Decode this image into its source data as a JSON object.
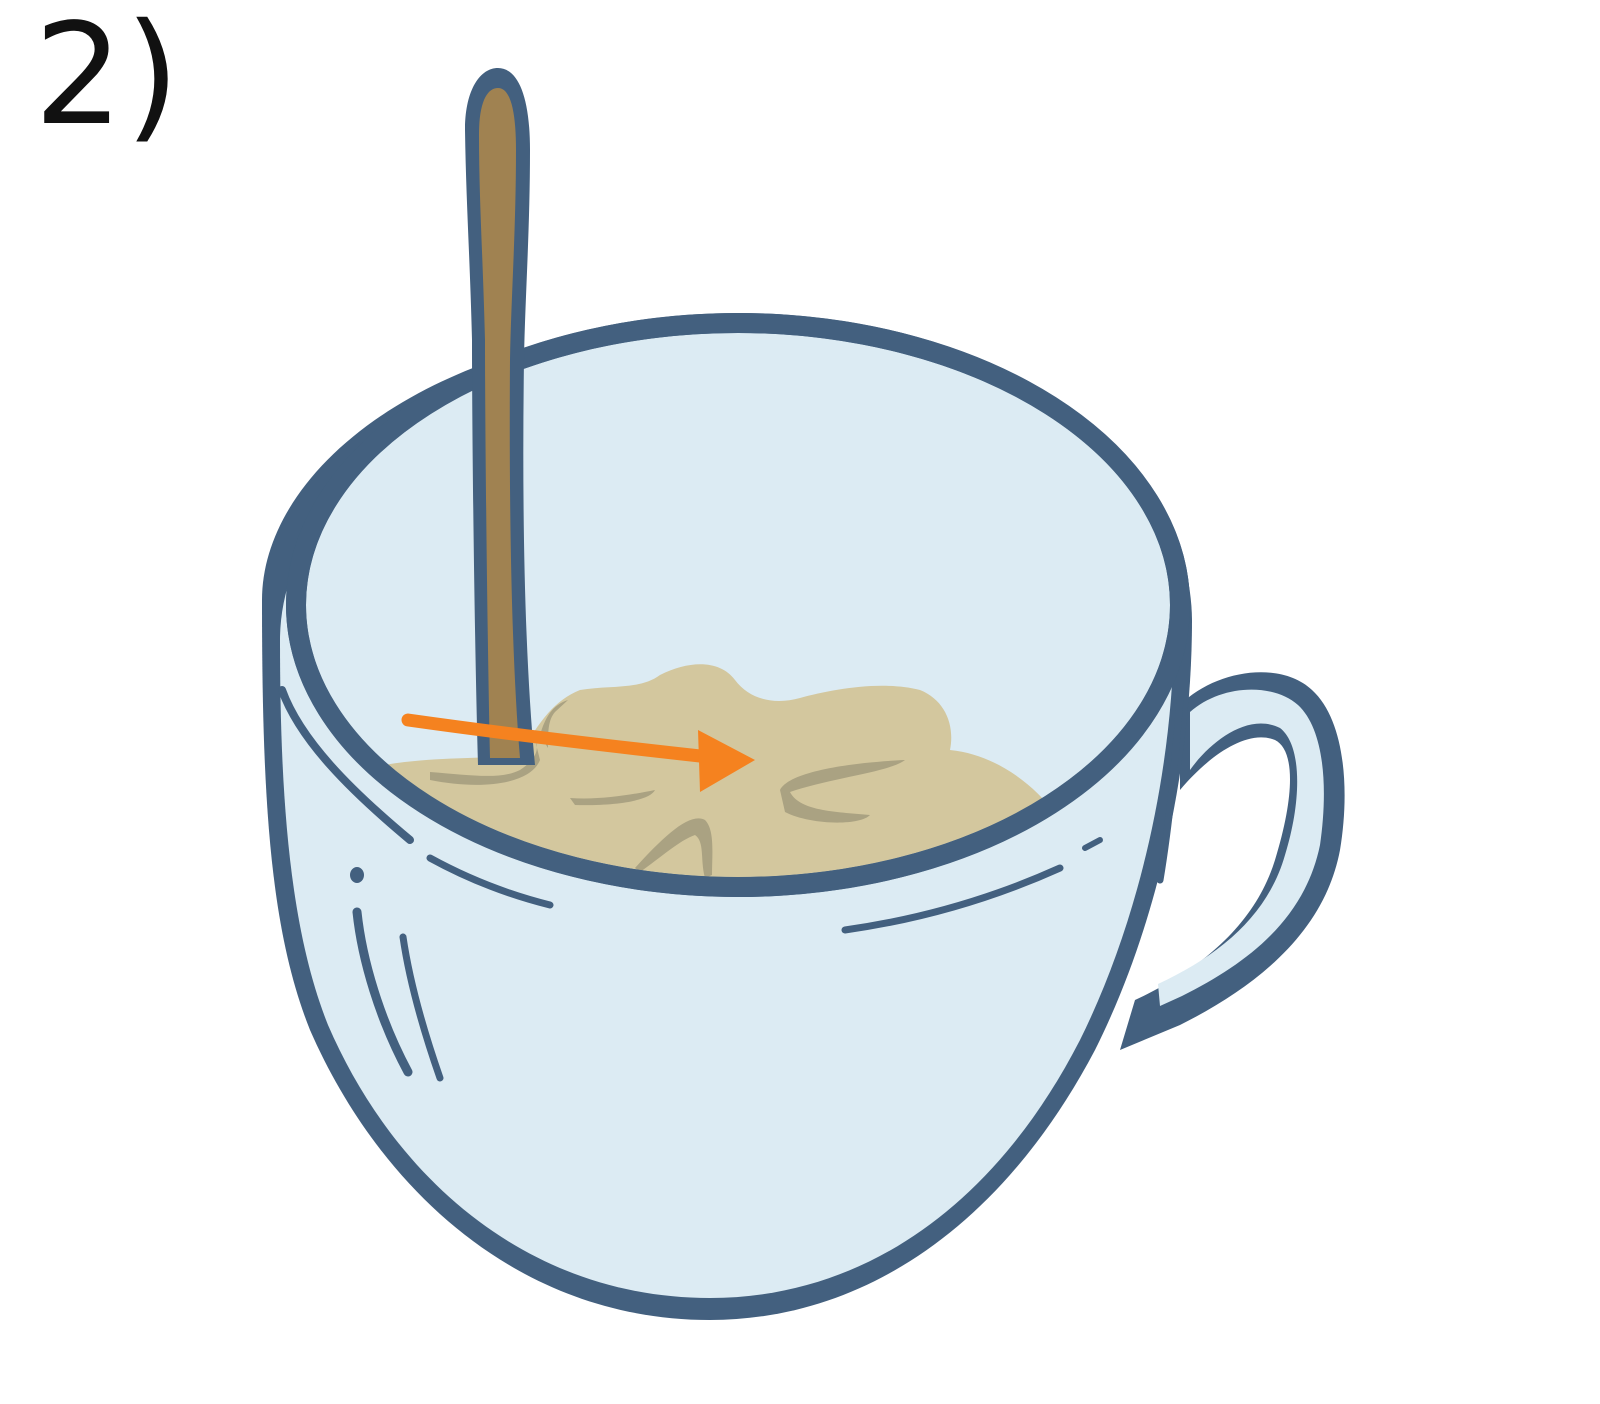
{
  "step": {
    "label": "2)"
  },
  "illustration": {
    "subject": "cup-with-spoon-stirring",
    "colors": {
      "outline": "#43607f",
      "cup_fill": "#dcebf3",
      "liquid": "#d3c79e",
      "liquid_shadow": "#aaa282",
      "spoon": "#a08251",
      "arrow": "#f5821f"
    }
  }
}
